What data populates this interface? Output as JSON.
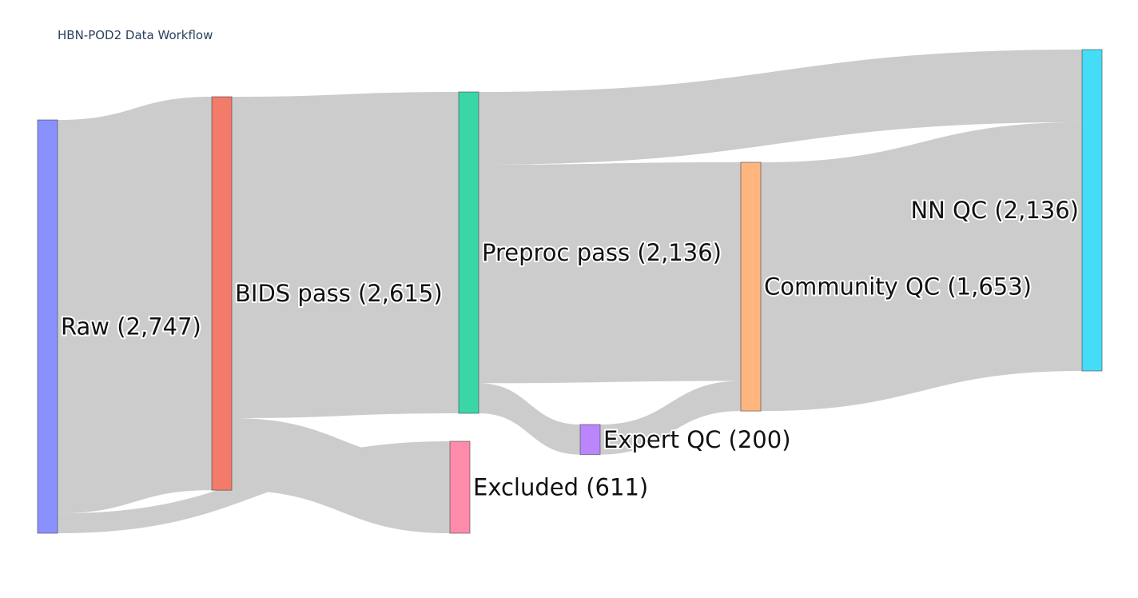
{
  "chart_data": {
    "type": "sankey",
    "title": "HBN-POD2 Data Workflow",
    "nodes": [
      {
        "id": "raw",
        "label": "Raw (2,747)",
        "color": "#8991ff"
      },
      {
        "id": "bids",
        "label": "BIDS pass (2,615)",
        "color": "#f27b6a"
      },
      {
        "id": "preproc",
        "label": "Preproc pass (2,136)",
        "color": "#3bd6a8"
      },
      {
        "id": "excluded",
        "label": "Excluded (611)",
        "color": "#ff8bab"
      },
      {
        "id": "expert",
        "label": "Expert QC (200)",
        "color": "#bb86fb"
      },
      {
        "id": "community",
        "label": "Community QC (1,653)",
        "color": "#ffb67e"
      },
      {
        "id": "nn",
        "label": "NN QC (2,136)",
        "color": "#45dcf7"
      }
    ],
    "links": [
      {
        "source": "raw",
        "target": "bids",
        "value": 2615
      },
      {
        "source": "raw",
        "target": "excluded",
        "value": 132
      },
      {
        "source": "bids",
        "target": "preproc",
        "value": 2136
      },
      {
        "source": "bids",
        "target": "excluded",
        "value": 479
      },
      {
        "source": "preproc",
        "target": "nn",
        "value": 483
      },
      {
        "source": "preproc",
        "target": "community",
        "value": 1453
      },
      {
        "source": "preproc",
        "target": "expert",
        "value": 200
      },
      {
        "source": "expert",
        "target": "community",
        "value": 200
      },
      {
        "source": "community",
        "target": "nn",
        "value": 1653
      }
    ],
    "link_color": "#cccccc"
  }
}
